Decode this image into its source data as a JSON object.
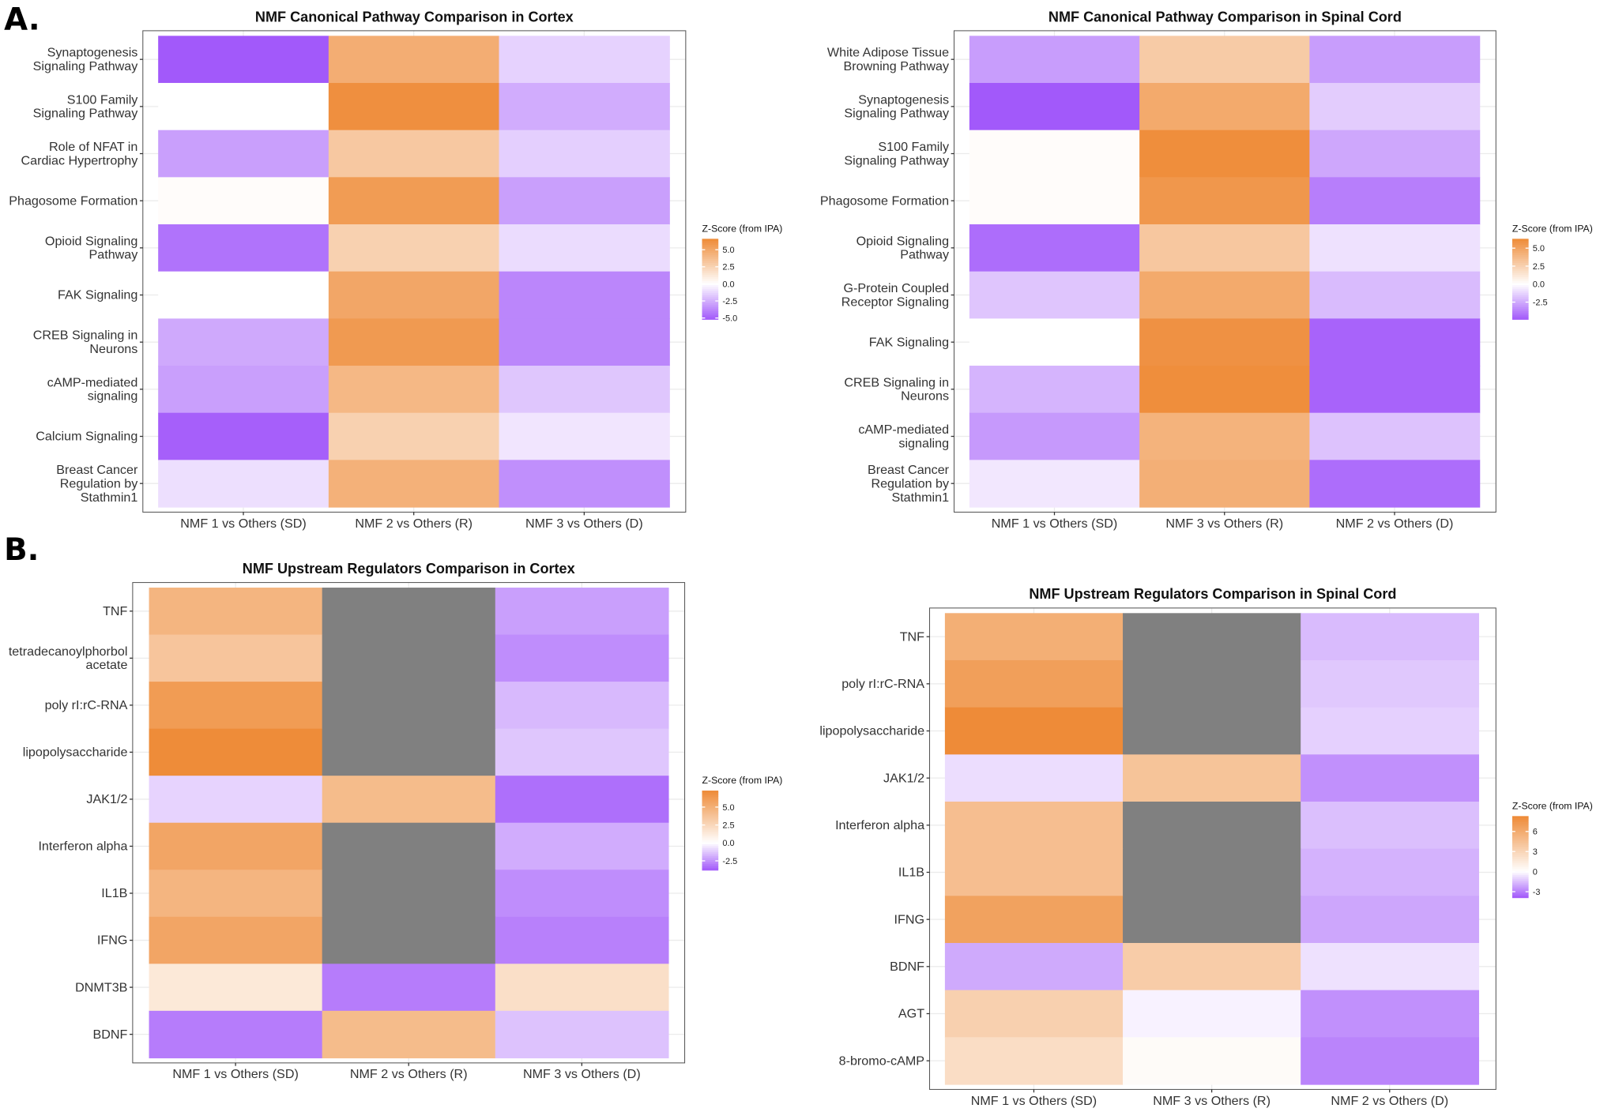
{
  "panel_labels": [
    "A.",
    "B."
  ],
  "scale_colors": {
    "high": "#EE8A36",
    "mid": "#FFFFFF",
    "low": "#A259FA",
    "na": "#808080"
  },
  "chart_data": [
    {
      "type": "heatmap",
      "title": "NMF Canonical Pathway Comparison in Cortex",
      "legend_title": "Z-Score (from IPA)",
      "legend_ticks": [
        5.0,
        2.5,
        0.0,
        -2.5,
        -5.0
      ],
      "legend_tick_labels": [
        "5.0",
        "2.5",
        "0.0",
        "-2.5",
        "-5.0"
      ],
      "color_range": [
        -5.2,
        6.6
      ],
      "columns": [
        "NMF 1 vs Others (SD)",
        "NMF 2 vs Others (R)",
        "NMF 3 vs Others (D)"
      ],
      "rows": [
        "Synaptogenesis\nSignaling Pathway",
        "S100 Family\nSignaling Pathway",
        "Role of NFAT in\nCardiac Hypertrophy",
        "Phagosome Formation",
        "Opioid Signaling\nPathway",
        "FAK Signaling",
        "CREB Signaling in\nNeurons",
        "cAMP-mediated\nsignaling",
        "Calcium Signaling",
        "Breast Cancer\nRegulation by\nStathmin1"
      ],
      "values": [
        [
          -5.2,
          4.6,
          -1.4
        ],
        [
          0,
          6.3,
          -2.6
        ],
        [
          -3.0,
          3.1,
          -1.5
        ],
        [
          0.15,
          5.6,
          -3.0
        ],
        [
          -4.4,
          2.6,
          -1.1
        ],
        [
          0,
          5.0,
          -3.8
        ],
        [
          -2.7,
          5.7,
          -3.8
        ],
        [
          -3.0,
          4.0,
          -1.8
        ],
        [
          -5.0,
          2.6,
          -0.8
        ],
        [
          -1.0,
          4.4,
          -3.5
        ]
      ]
    },
    {
      "type": "heatmap",
      "title": "NMF Canonical Pathway Comparison in Spinal Cord",
      "legend_title": "Z-Score (from IPA)",
      "legend_ticks": [
        5.0,
        2.5,
        0.0,
        -2.5
      ],
      "legend_tick_labels": [
        "5.0",
        "2.5",
        "0.0",
        "-2.5"
      ],
      "color_range": [
        -4.9,
        6.3
      ],
      "columns": [
        "NMF 1 vs Others (SD)",
        "NMF 3 vs Others (R)",
        "NMF 2 vs Others (D)"
      ],
      "rows": [
        "White Adipose Tissue\nBrowning Pathway",
        "Synaptogenesis\nSignaling Pathway",
        "S100 Family\nSignaling Pathway",
        "Phagosome Formation",
        "Opioid Signaling\nPathway",
        "G-Protein Coupled\nReceptor Signaling",
        "FAK Signaling",
        "CREB Signaling in\nNeurons",
        "cAMP-mediated\nsignaling",
        "Breast Cancer\nRegulation by\nStathmin1"
      ],
      "values": [
        [
          -2.9,
          2.8,
          -2.9
        ],
        [
          -4.9,
          4.6,
          -1.5
        ],
        [
          0.15,
          6.1,
          -2.6
        ],
        [
          0.15,
          5.6,
          -3.8
        ],
        [
          -4.3,
          3.0,
          -0.9
        ],
        [
          -1.7,
          4.6,
          -2.0
        ],
        [
          0,
          5.9,
          -4.6
        ],
        [
          -2.2,
          6.1,
          -4.6
        ],
        [
          -3.0,
          4.1,
          -1.8
        ],
        [
          -0.7,
          4.3,
          -4.3
        ]
      ]
    },
    {
      "type": "heatmap",
      "title": "NMF Upstream Regulators Comparison in Cortex",
      "legend_title": "Z-Score (from IPA)",
      "legend_ticks": [
        5.0,
        2.5,
        0.0,
        -2.5
      ],
      "legend_tick_labels": [
        "5.0",
        "2.5",
        "0.0",
        "-2.5"
      ],
      "color_range": [
        -3.8,
        7.3
      ],
      "columns": [
        "NMF 1 vs Others (SD)",
        "NMF 2 vs Others (R)",
        "NMF 3 vs Others (D)"
      ],
      "rows": [
        "TNF",
        "tetradecanoylphorbol\nacetate",
        "poly rI:rC-RNA",
        "lipopolysaccharide",
        "JAK1/2",
        "Interferon alpha",
        "IL1B",
        "IFNG",
        "DNMT3B",
        "BDNF"
      ],
      "values": [
        [
          4.6,
          null,
          -2.2
        ],
        [
          3.6,
          null,
          -2.6
        ],
        [
          6.2,
          null,
          -1.6
        ],
        [
          7.2,
          null,
          -1.3
        ],
        [
          -1.0,
          4.2,
          -3.3
        ],
        [
          5.6,
          null,
          -1.9
        ],
        [
          4.6,
          null,
          -2.6
        ],
        [
          5.6,
          null,
          -2.9
        ],
        [
          1.4,
          -3.0,
          2.0
        ],
        [
          -3.0,
          4.2,
          -1.4
        ]
      ]
    },
    {
      "type": "heatmap",
      "title": "NMF Upstream Regulators Comparison in Spinal Cord",
      "legend_title": "Z-Score (from IPA)",
      "legend_ticks": [
        6,
        3,
        0,
        -3
      ],
      "legend_tick_labels": [
        "6",
        "3",
        "0",
        "-3"
      ],
      "color_range": [
        -3.9,
        8.3
      ],
      "columns": [
        "NMF 1 vs Others (SD)",
        "NMF 3 vs Others (R)",
        "NMF 2 vs Others (D)"
      ],
      "rows": [
        "TNF",
        "poly rI:rC-RNA",
        "lipopolysaccharide",
        "JAK1/2",
        "Interferon alpha",
        "IL1B",
        "IFNG",
        "BDNF",
        "AGT",
        "8-bromo-cAMP"
      ],
      "values": [
        [
          5.7,
          null,
          -1.6
        ],
        [
          6.8,
          null,
          -1.3
        ],
        [
          8.2,
          null,
          -1.1
        ],
        [
          -0.8,
          4.2,
          -2.6
        ],
        [
          4.6,
          null,
          -1.5
        ],
        [
          4.6,
          null,
          -1.8
        ],
        [
          6.6,
          null,
          -2.1
        ],
        [
          -2.0,
          3.6,
          -0.7
        ],
        [
          3.3,
          -0.3,
          -2.6
        ],
        [
          2.4,
          0.3,
          -2.9
        ]
      ]
    }
  ]
}
